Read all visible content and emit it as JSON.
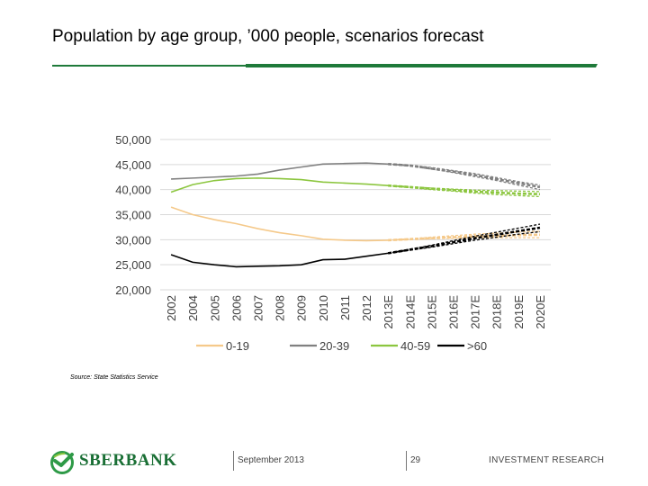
{
  "slide": {
    "title": "Population by age group, ’000 people, scenarios forecast",
    "source": "Source: State Statistics Service",
    "brand": "SBERBANK",
    "date": "September 2013",
    "page": "29",
    "department": "INVESTMENT RESEARCH",
    "brand_color": "#1a6f35",
    "rule_color": "#1f7a3a"
  },
  "chart_data": {
    "type": "line",
    "title": "",
    "xlabel": "",
    "ylabel": "",
    "ylim": [
      20000,
      50000
    ],
    "yticks": [
      20000,
      25000,
      30000,
      35000,
      40000,
      45000,
      50000
    ],
    "ytick_labels": [
      "20,000",
      "25,000",
      "30,000",
      "35,000",
      "40,000",
      "45,000",
      "50,000"
    ],
    "grid": true,
    "legend_position": "bottom",
    "categories": [
      "2002",
      "2004",
      "2005",
      "2006",
      "2007",
      "2008",
      "2009",
      "2010",
      "2011",
      "2012",
      "2013E",
      "2014E",
      "2015E",
      "2016E",
      "2017E",
      "2018E",
      "2019E",
      "2020E"
    ],
    "forecast_start_index": 10,
    "series": [
      {
        "name": "0-19",
        "color": "#f5c98a",
        "values": [
          36500,
          35000,
          34000,
          33200,
          32200,
          31400,
          30800,
          30100,
          29900,
          29800,
          29900,
          30100,
          30300,
          30500,
          30700,
          30800,
          30900,
          31000
        ],
        "scenario_bands": [
          {
            "low": [
              29900,
              30000,
              30200,
              30300,
              30400,
              30400,
              30400,
              30400
            ],
            "high": [
              29900,
              30200,
              30500,
              30800,
              31100,
              31300,
              31500,
              31700
            ]
          }
        ]
      },
      {
        "name": "20-39",
        "color": "#808080",
        "values": [
          42100,
          42300,
          42500,
          42700,
          43100,
          43900,
          44500,
          45100,
          45200,
          45300,
          45100,
          44800,
          44200,
          43600,
          42900,
          42100,
          41300,
          40500
        ],
        "scenario_bands": [
          {
            "low": [
              45100,
              44700,
              44100,
              43400,
              42600,
              41800,
              40900,
              40000
            ],
            "high": [
              45100,
              44900,
              44400,
              43800,
              43200,
              42400,
              41600,
              40900
            ]
          }
        ]
      },
      {
        "name": "40-59",
        "color": "#8cc63f",
        "values": [
          39500,
          41000,
          41800,
          42200,
          42300,
          42200,
          42000,
          41500,
          41300,
          41100,
          40800,
          40500,
          40200,
          39900,
          39600,
          39400,
          39200,
          39100
        ],
        "scenario_bands": [
          {
            "low": [
              40800,
              40400,
              40000,
              39700,
              39300,
              39000,
              38800,
              38600
            ],
            "high": [
              40800,
              40600,
              40300,
              40100,
              39900,
              39800,
              39700,
              39600
            ]
          }
        ]
      },
      {
        "name": ">60",
        "color": "#000000",
        "values": [
          27000,
          25500,
          25000,
          24600,
          24700,
          24800,
          25000,
          26000,
          26100,
          26700,
          27300,
          28000,
          28700,
          29500,
          30300,
          31000,
          31700,
          32400
        ],
        "scenario_bands": [
          {
            "low": [
              27300,
              27900,
              28500,
              29200,
              29900,
              30500,
              31100,
              31600
            ],
            "high": [
              27300,
              28100,
              28900,
              29800,
              30700,
              31500,
              32300,
              33100
            ]
          }
        ]
      }
    ]
  }
}
